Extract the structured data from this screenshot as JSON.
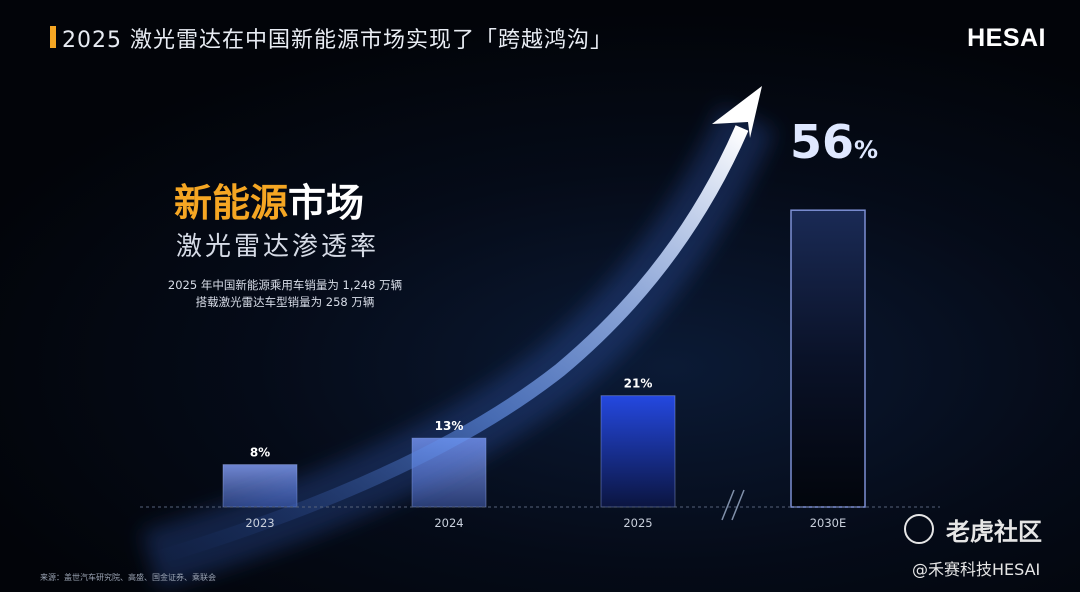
{
  "header": {
    "title": "2025 激光雷达在中国新能源市场实现了「跨越鸿沟」",
    "logo": "HESAI"
  },
  "heading": {
    "highlight": "新能源",
    "rest": "市场",
    "subtitle": "激光雷达渗透率"
  },
  "notes": [
    "2025 年中国新能源乘用车销量为 1,248 万辆",
    "搭载激光雷达车型销量为 258 万辆"
  ],
  "highlight_value": {
    "number": "56",
    "unit": "%"
  },
  "source": "来源：盖世汽车研究院、高盛、国金证券、乘联会",
  "watermark": {
    "text": "老虎社区",
    "handle": "@禾赛科技HESAI"
  },
  "colors": {
    "accent": "#f5a623",
    "bar": "#5f78c4",
    "bar2025": "#1f43d6",
    "projection_border": "#7d8fd4"
  },
  "chart_data": {
    "type": "bar",
    "title": "",
    "xlabel": "",
    "ylabel": "",
    "categories": [
      "2023",
      "2024",
      "2025",
      "2030E"
    ],
    "values": [
      8,
      13,
      21,
      56
    ],
    "value_labels": [
      "8%",
      "13%",
      "21%",
      "56%"
    ],
    "unit": "%",
    "ylim": [
      0,
      60
    ],
    "projected": [
      false,
      false,
      false,
      true
    ],
    "axis_break_between": [
      "2025",
      "2030E"
    ],
    "trend_arrow": true,
    "grid": false
  }
}
